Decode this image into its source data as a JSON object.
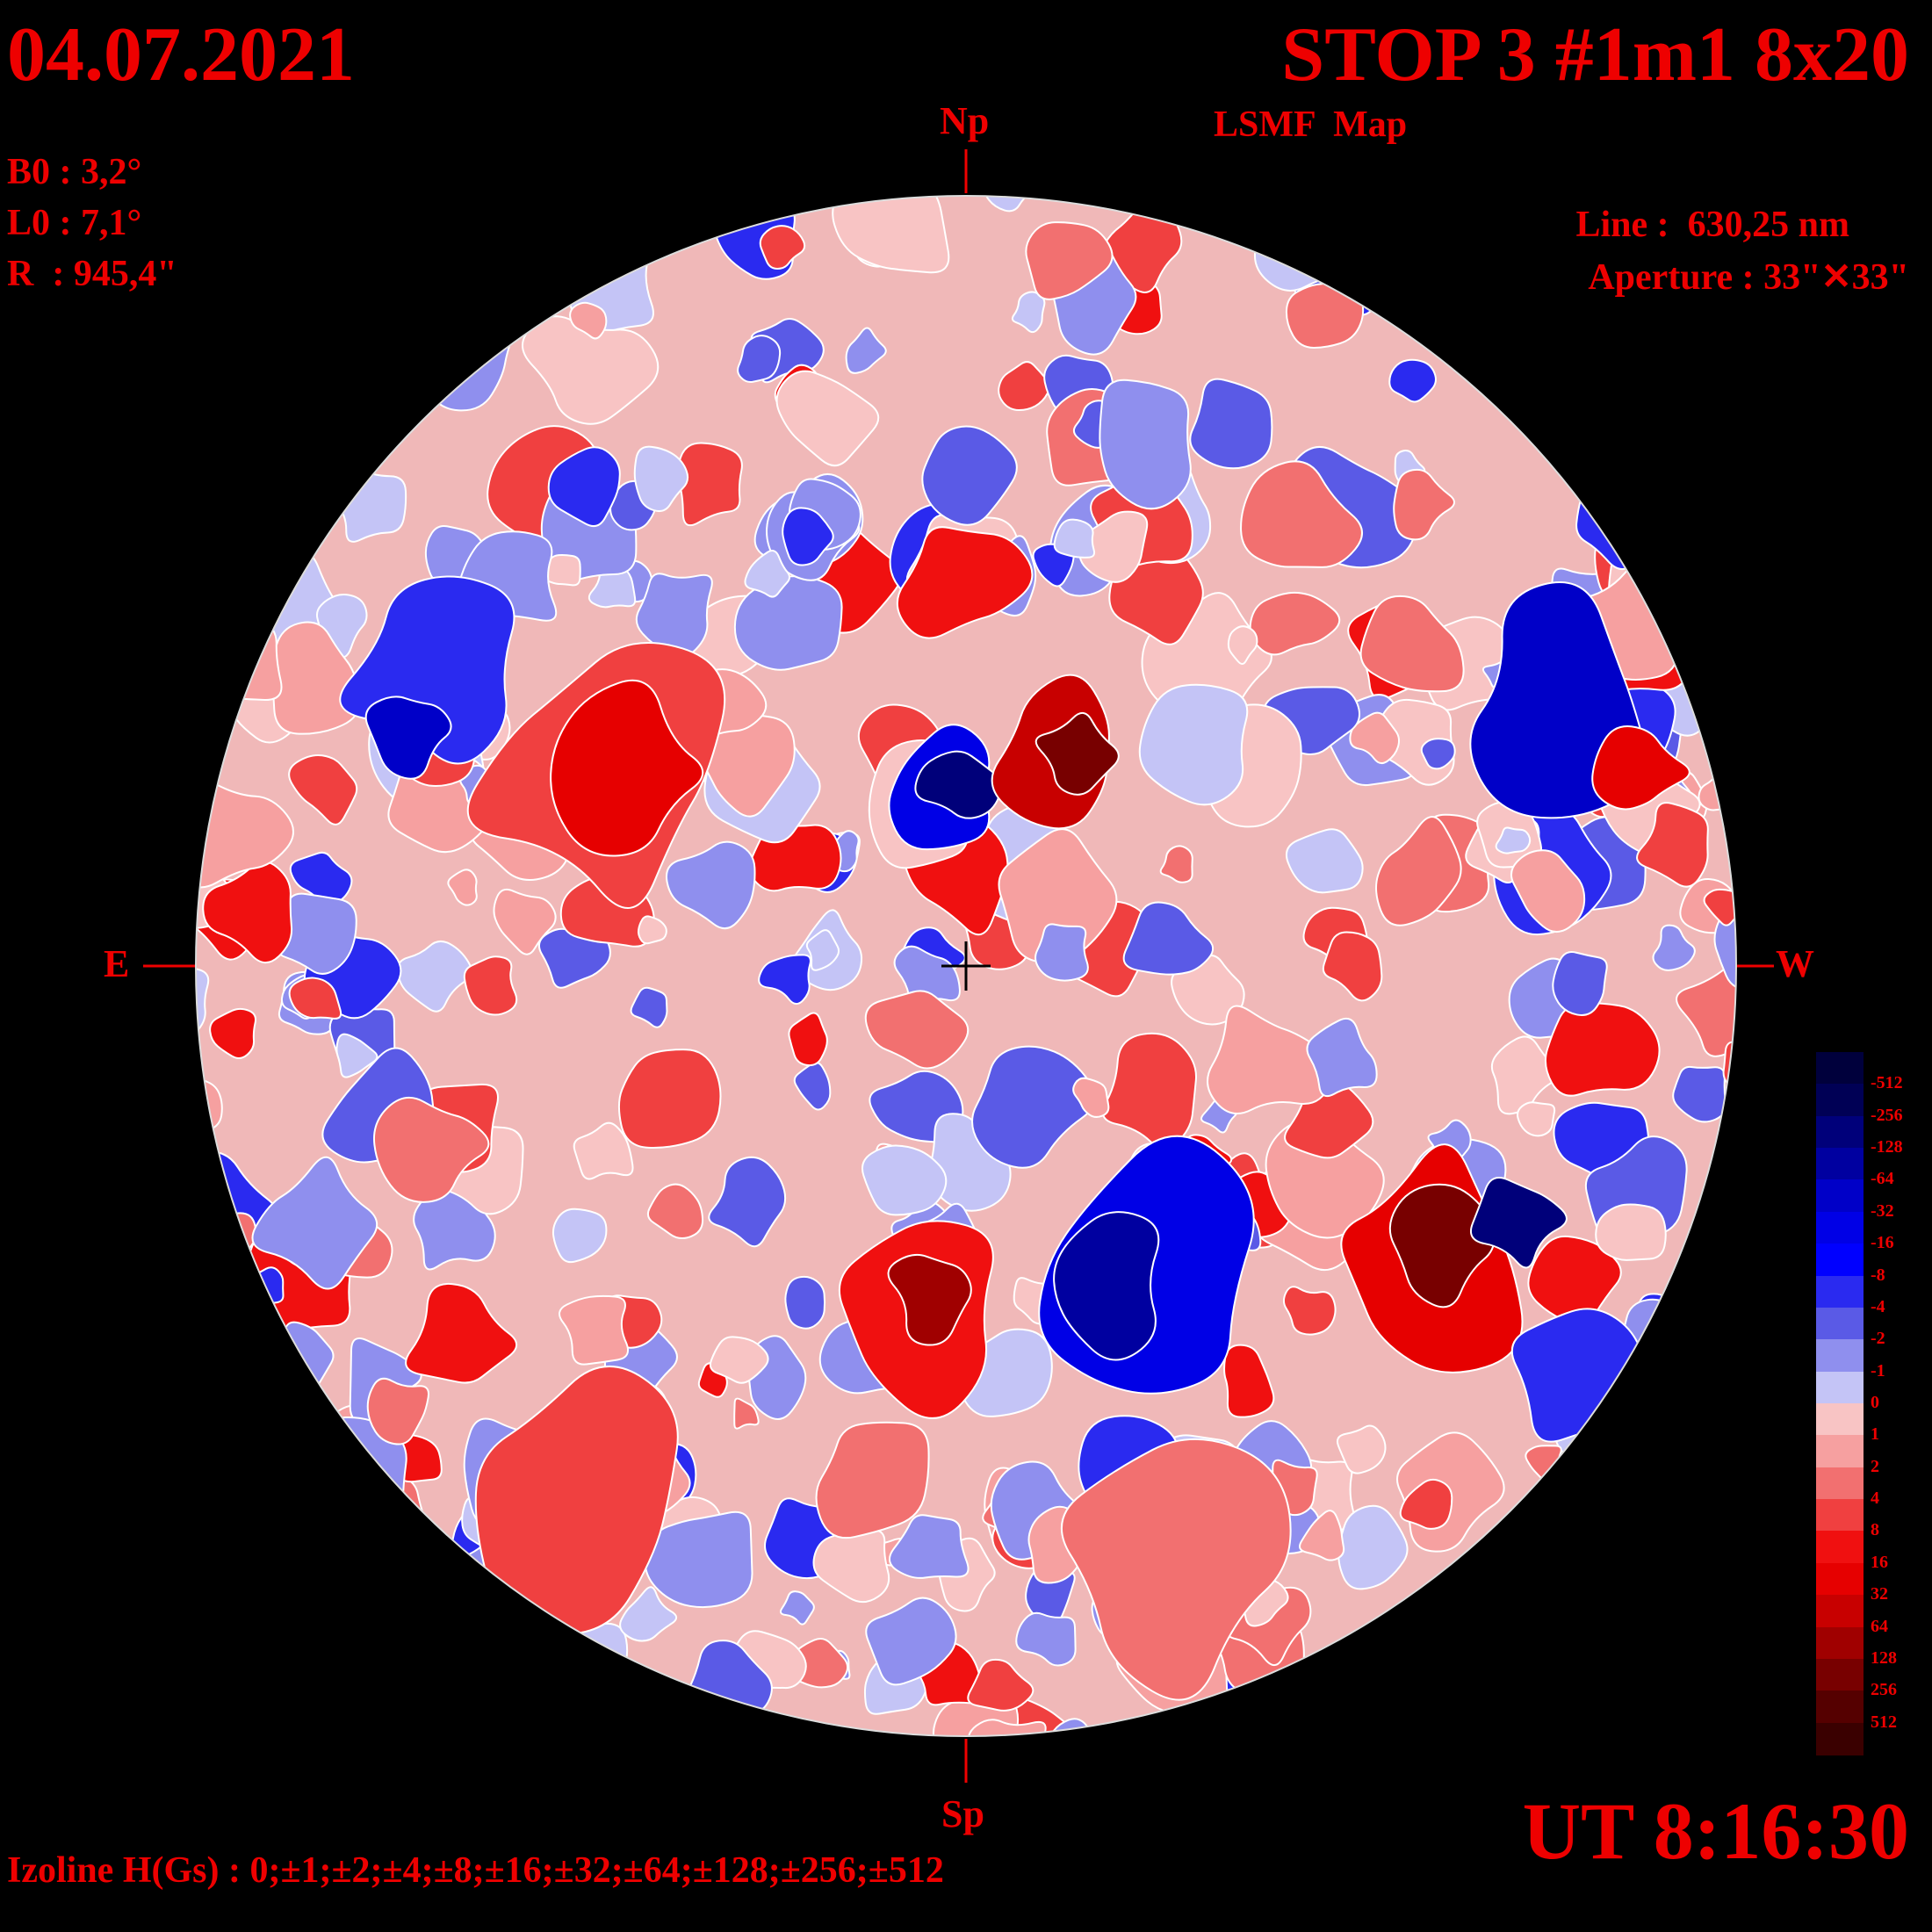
{
  "header": {
    "date": "04.07.2021",
    "title": "STOP 3 #1m1 8x20",
    "subtitle": "LSMF  Map"
  },
  "params": {
    "b0": "B0 : 3,2°",
    "l0": "L0 : 7,1°",
    "r": "R  : 945,4\"",
    "line": "Line :  630,25 nm",
    "aperture": "Aperture : 33\"✕33\""
  },
  "compass": {
    "north": "Np",
    "south": "Sp",
    "east": "E",
    "west": "W"
  },
  "footer": {
    "time": "UT 8:16:30",
    "izoline": "Izoline H(Gs) : 0;±1;±2;±4;±8;±16;±32;±64;±128;±256;±512"
  },
  "legend": {
    "labels": [
      "-512",
      "-256",
      "-128",
      "-64",
      "-32",
      "-16",
      "-8",
      "-4",
      "-2",
      "-1",
      "0",
      "1",
      "2",
      "4",
      "8",
      "16",
      "32",
      "64",
      "128",
      "256",
      "512"
    ],
    "colors": [
      "#00003c",
      "#000055",
      "#00007a",
      "#0000a0",
      "#0000c8",
      "#0000e6",
      "#0000ff",
      "#2a2af0",
      "#5a5ae6",
      "#8f8fee",
      "#c4c4f6",
      "#f8c4c4",
      "#f6a0a0",
      "#f27070",
      "#f04040",
      "#f01010",
      "#e60000",
      "#c80000",
      "#a00000",
      "#780000",
      "#550000",
      "#3a0000"
    ]
  },
  "colors": {
    "text": "#ee0000",
    "background": "#000000",
    "iso_zero": "#ffffff"
  }
}
